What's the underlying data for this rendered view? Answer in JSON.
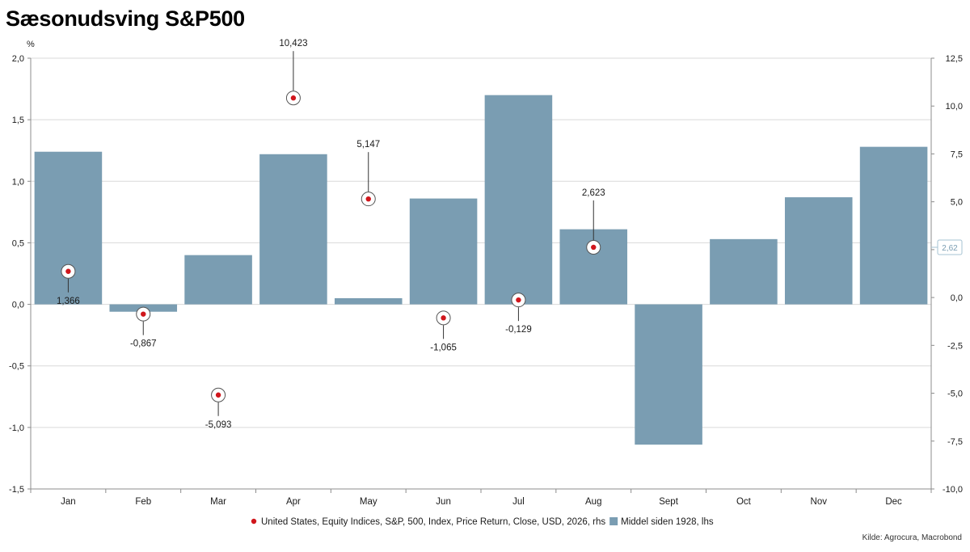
{
  "title": "Sæsonudsving S&P500",
  "source": "Kilde: Agrocura, Macrobond",
  "left_unit": "%",
  "last_value_tag": "2,62",
  "colors": {
    "bar": "#7a9db2",
    "marker": "#d0161c",
    "grid": "#d9d9d9",
    "axis": "#8c8c8c",
    "tag_border": "#a6c3d3",
    "tag_text": "#7a9db2"
  },
  "chart_data": {
    "type": "bar",
    "categories": [
      "Jan",
      "Feb",
      "Mar",
      "Apr",
      "May",
      "Jun",
      "Jul",
      "Aug",
      "Sept",
      "Oct",
      "Nov",
      "Dec"
    ],
    "left_axis": {
      "ylim": [
        -1.5,
        2.0
      ],
      "ticks": [
        "2,0",
        "1,5",
        "1,0",
        "0,5",
        "0,0",
        "-0,5",
        "-1,0",
        "-1,5"
      ],
      "tick_values": [
        2.0,
        1.5,
        1.0,
        0.5,
        0.0,
        -0.5,
        -1.0,
        -1.5
      ]
    },
    "right_axis": {
      "ylim": [
        -10.0,
        12.5
      ],
      "ticks": [
        "12,5",
        "10,0",
        "7,5",
        "5,0",
        "2,5",
        "0,0",
        "-2,5",
        "-5,0",
        "-7,5",
        "-10,0"
      ],
      "tick_values": [
        12.5,
        10.0,
        7.5,
        5.0,
        2.5,
        0.0,
        -2.5,
        -5.0,
        -7.5,
        -10.0
      ]
    },
    "series": [
      {
        "name": "Middel siden 1928, lhs",
        "type": "bar",
        "axis": "left",
        "values": [
          1.24,
          -0.06,
          0.4,
          1.22,
          0.05,
          0.86,
          1.7,
          0.61,
          -1.14,
          0.53,
          0.87,
          1.28
        ]
      },
      {
        "name": "United States, Equity Indices, S&P, 500, Index, Price Return, Close, USD, 2026, rhs",
        "type": "scatter",
        "axis": "right",
        "values": [
          1.366,
          -0.867,
          -5.093,
          10.423,
          5.147,
          -1.065,
          -0.129,
          2.623
        ],
        "labels": [
          "1,366",
          "-0,867",
          "-5,093",
          "10,423",
          "5,147",
          "-1,065",
          "-0,129",
          "2,623"
        ],
        "label_side": [
          "below",
          "below",
          "below",
          "above",
          "above",
          "below",
          "below",
          "above"
        ]
      }
    ],
    "legend_position": "bottom-center",
    "grid": true
  }
}
